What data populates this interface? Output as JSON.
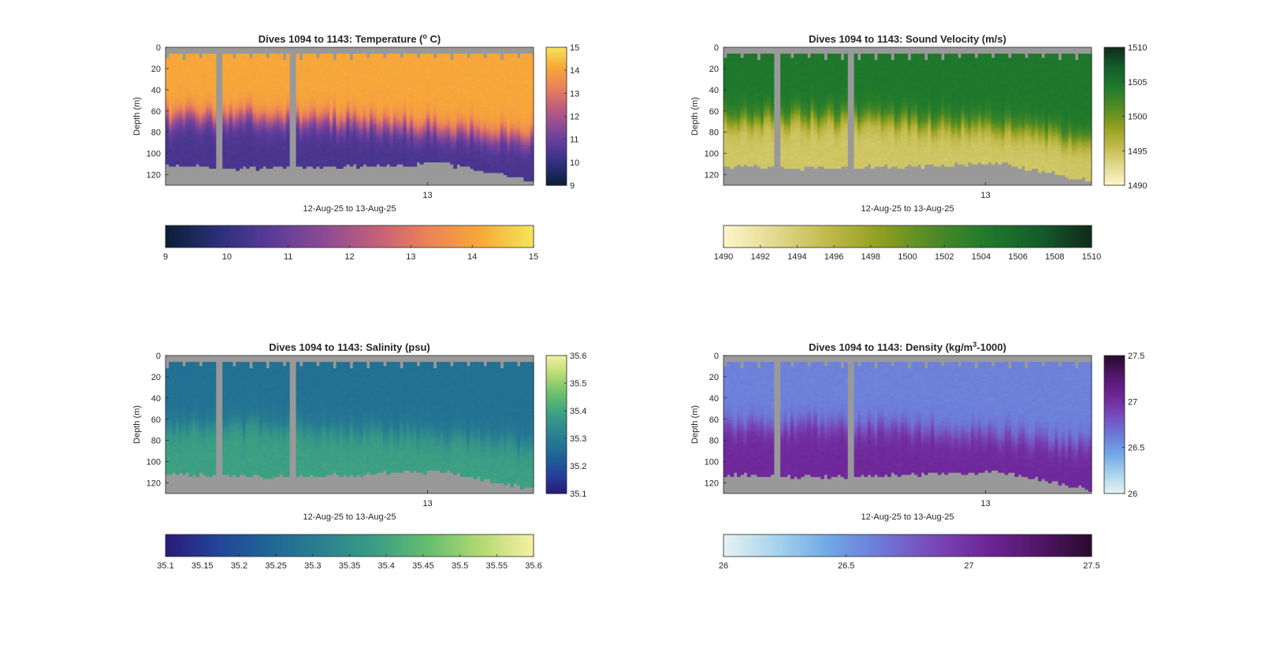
{
  "figure": {
    "x_range_label": "12-Aug-25 to 13-Aug-25",
    "nan_color": "#999999"
  },
  "chart_data": [
    {
      "type": "heatmap",
      "title": "Dives 1094 to 1143: Temperature (",
      "title_sup": "o",
      "title_tail": " C)",
      "xlabel": "12-Aug-25 to 13-Aug-25",
      "ylabel": "Depth (m)",
      "x_tick_labels": [
        "13"
      ],
      "y_ticks": [
        0,
        20,
        40,
        60,
        80,
        100,
        120
      ],
      "ylim": [
        0,
        130
      ],
      "side_cbar": {
        "ticks": [
          9,
          10,
          11,
          12,
          13,
          14,
          15
        ],
        "labels": [
          "9",
          "10",
          "11",
          "12",
          "13",
          "14",
          "15"
        ],
        "lim": [
          9,
          15
        ]
      },
      "bottom_cbar": {
        "ticks": [
          9,
          10,
          11,
          12,
          13,
          14,
          15
        ],
        "labels": [
          "9",
          "10",
          "11",
          "12",
          "13",
          "14",
          "15"
        ],
        "lim": [
          9,
          15
        ]
      },
      "colormap": [
        "#0b1f35",
        "#2b2f7a",
        "#5a3a9a",
        "#8c4b95",
        "#c25f7a",
        "#ec8358",
        "#f7a938",
        "#f4e65a"
      ],
      "upper_value": 14.1,
      "lower_value": 10.4,
      "thermocline_depth_m": [
        68,
        66,
        70,
        76,
        86
      ],
      "max_depth_m": [
        114,
        116,
        114,
        111,
        128
      ]
    },
    {
      "type": "heatmap",
      "title": "Dives 1094 to 1143: Sound Velocity (m/s)",
      "xlabel": "12-Aug-25 to 13-Aug-25",
      "ylabel": "Depth (m)",
      "x_tick_labels": [
        "13"
      ],
      "y_ticks": [
        0,
        20,
        40,
        60,
        80,
        100,
        120
      ],
      "ylim": [
        0,
        130
      ],
      "side_cbar": {
        "ticks": [
          1490,
          1495,
          1500,
          1505,
          1510
        ],
        "labels": [
          "1490",
          "1495",
          "1500",
          "1505",
          "1510"
        ],
        "lim": [
          1490,
          1510
        ]
      },
      "bottom_cbar": {
        "ticks": [
          1490,
          1492,
          1494,
          1496,
          1498,
          1500,
          1502,
          1504,
          1506,
          1508,
          1510
        ],
        "labels": [
          "1490",
          "1492",
          "1494",
          "1496",
          "1498",
          "1500",
          "1502",
          "1504",
          "1506",
          "1508",
          "1510"
        ],
        "lim": [
          1490,
          1510
        ]
      },
      "colormap": [
        "#fdf6cb",
        "#e1d98c",
        "#c1b94a",
        "#8e9f1f",
        "#4f8a26",
        "#1f7a2c",
        "#135e2a",
        "#12291b"
      ],
      "upper_value": 1504.5,
      "lower_value": 1494.5,
      "thermocline_depth_m": [
        68,
        66,
        70,
        76,
        86
      ],
      "max_depth_m": [
        114,
        116,
        114,
        111,
        128
      ]
    },
    {
      "type": "heatmap",
      "title": "Dives 1094 to 1143: Salinity (psu)",
      "xlabel": "12-Aug-25 to 13-Aug-25",
      "ylabel": "Depth (m)",
      "x_tick_labels": [
        "13"
      ],
      "y_ticks": [
        0,
        20,
        40,
        60,
        80,
        100,
        120
      ],
      "ylim": [
        0,
        130
      ],
      "side_cbar": {
        "ticks": [
          35.1,
          35.2,
          35.3,
          35.4,
          35.5,
          35.6
        ],
        "labels": [
          "35.1",
          "35.2",
          "35.3",
          "35.4",
          "35.5",
          "35.6"
        ],
        "lim": [
          35.1,
          35.6
        ]
      },
      "bottom_cbar": {
        "ticks": [
          35.1,
          35.15,
          35.2,
          35.25,
          35.3,
          35.35,
          35.4,
          35.45,
          35.5,
          35.55,
          35.6
        ],
        "labels": [
          "35.1",
          "35.15",
          "35.2",
          "35.25",
          "35.3",
          "35.35",
          "35.4",
          "35.45",
          "35.5",
          "35.55",
          "35.6"
        ],
        "lim": [
          35.1,
          35.6
        ]
      },
      "colormap": [
        "#2a1a7a",
        "#23449a",
        "#1f6795",
        "#2a8290",
        "#3a9e84",
        "#66be6d",
        "#b2da72",
        "#f7f0a3"
      ],
      "upper_value": 35.27,
      "lower_value": 35.39,
      "thermocline_depth_m": [
        68,
        66,
        70,
        76,
        86
      ],
      "max_depth_m": [
        114,
        116,
        114,
        111,
        128
      ]
    },
    {
      "type": "heatmap",
      "title": "Dives 1094 to 1143: Density (kg/m",
      "title_sup": "3",
      "title_tail": "-1000)",
      "xlabel": "12-Aug-25 to 13-Aug-25",
      "ylabel": "Depth (m)",
      "x_tick_labels": [
        "13"
      ],
      "y_ticks": [
        0,
        20,
        40,
        60,
        80,
        100,
        120
      ],
      "ylim": [
        0,
        130
      ],
      "side_cbar": {
        "ticks": [
          26,
          26.5,
          27,
          27.5
        ],
        "labels": [
          "26",
          "26.5",
          "27",
          "27.5"
        ],
        "lim": [
          26,
          27.5
        ]
      },
      "bottom_cbar": {
        "ticks": [
          26,
          26.5,
          27,
          27.5
        ],
        "labels": [
          "26",
          "26.5",
          "27",
          "27.5"
        ],
        "lim": [
          26,
          27.5
        ]
      },
      "colormap": [
        "#e7f2f2",
        "#a8d3ec",
        "#6fa8e6",
        "#6d78d8",
        "#7848b8",
        "#6e2597",
        "#511668",
        "#2a0a2e"
      ],
      "upper_value": 26.6,
      "lower_value": 27.05,
      "thermocline_depth_m": [
        68,
        66,
        70,
        76,
        86
      ],
      "max_depth_m": [
        114,
        116,
        114,
        111,
        128
      ]
    }
  ]
}
